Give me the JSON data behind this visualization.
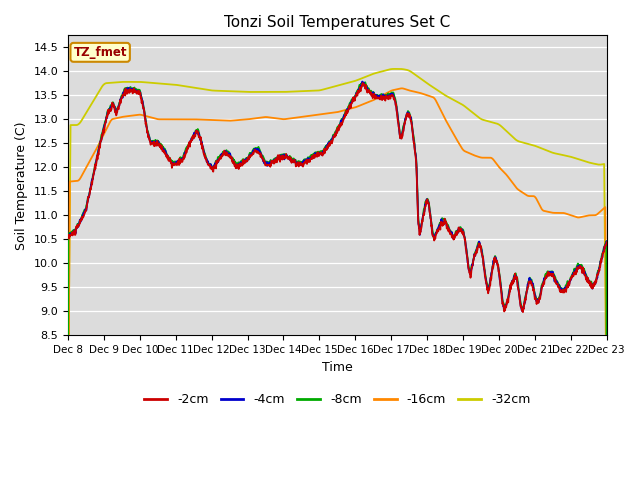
{
  "title": "Tonzi Soil Temperatures Set C",
  "xlabel": "Time",
  "ylabel": "Soil Temperature (C)",
  "ylim": [
    8.5,
    14.75
  ],
  "yticks": [
    8.5,
    9.0,
    9.5,
    10.0,
    10.5,
    11.0,
    11.5,
    12.0,
    12.5,
    13.0,
    13.5,
    14.0,
    14.5
  ],
  "bg_color": "#dcdcdc",
  "line_colors": {
    "-2cm": "#cc0000",
    "-4cm": "#0000cc",
    "-8cm": "#00aa00",
    "-16cm": "#ff8800",
    "-32cm": "#cccc00"
  },
  "legend_label": "TZ_fmet",
  "legend_box_facecolor": "#ffffcc",
  "legend_box_edgecolor": "#cc8800",
  "x_tick_labels": [
    "Dec 8",
    "Dec 9",
    "Dec 10",
    "Dec 11",
    "Dec 12",
    "Dec 13",
    "Dec 14",
    "Dec 15",
    "Dec 16",
    "Dec 17",
    "Dec 18",
    "Dec 19",
    "Dec 20",
    "Dec 21",
    "Dec 22",
    "Dec 23"
  ]
}
